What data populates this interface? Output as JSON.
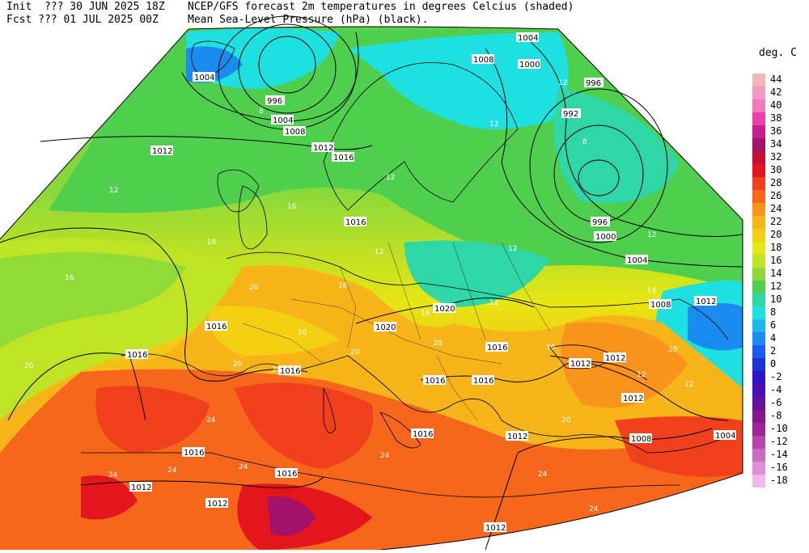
{
  "header": {
    "init_line": "Init  ??? 30 JUN 2025 18Z",
    "fcst_line": "Fcst ??? 01 JUL 2025 00Z",
    "title_line1": "NCEP/GFS forecast 2m temperatures in degrees Celcius (shaded)",
    "title_line2": "Mean Sea-Level Pressure (hPa) (black)."
  },
  "legend": {
    "title": "deg. C",
    "entries": [
      {
        "label": "44",
        "color": "#f4b7b7"
      },
      {
        "label": "42",
        "color": "#f39ac7"
      },
      {
        "label": "40",
        "color": "#f178b9"
      },
      {
        "label": "38",
        "color": "#ee3fae"
      },
      {
        "label": "36",
        "color": "#c81e8e"
      },
      {
        "label": "34",
        "color": "#a3126a"
      },
      {
        "label": "32",
        "color": "#c20f3b"
      },
      {
        "label": "30",
        "color": "#e3151d"
      },
      {
        "label": "28",
        "color": "#f1401c"
      },
      {
        "label": "26",
        "color": "#f6671c"
      },
      {
        "label": "24",
        "color": "#f8941c"
      },
      {
        "label": "22",
        "color": "#f8b519"
      },
      {
        "label": "20",
        "color": "#f4d013"
      },
      {
        "label": "18",
        "color": "#e7e612"
      },
      {
        "label": "16",
        "color": "#bfe325"
      },
      {
        "label": "14",
        "color": "#8bd93a"
      },
      {
        "label": "12",
        "color": "#4fcf4d"
      },
      {
        "label": "10",
        "color": "#2fd6a6"
      },
      {
        "label": "8",
        "color": "#1ee0e0"
      },
      {
        "label": "6",
        "color": "#1ab8ec"
      },
      {
        "label": "4",
        "color": "#1a8cf0"
      },
      {
        "label": "2",
        "color": "#1a5cf0"
      },
      {
        "label": "0",
        "color": "#1c33d9"
      },
      {
        "label": "-2",
        "color": "#3013c9"
      },
      {
        "label": "-4",
        "color": "#4b0fb4"
      },
      {
        "label": "-6",
        "color": "#66109f"
      },
      {
        "label": "-8",
        "color": "#86168f"
      },
      {
        "label": "-10",
        "color": "#a02499"
      },
      {
        "label": "-12",
        "color": "#b843ad"
      },
      {
        "label": "-14",
        "color": "#cc69c2"
      },
      {
        "label": "-16",
        "color": "#de8ed6"
      },
      {
        "label": "-18",
        "color": "#f2b5ec"
      }
    ]
  },
  "isobar_labels": [
    "1004",
    "1008",
    "1000",
    "996",
    "992",
    "1004",
    "996",
    "1004",
    "1008",
    "1012",
    "1012",
    "1016",
    "1016",
    "996",
    "1000",
    "1004",
    "1008",
    "1012",
    "1020",
    "1020",
    "1016",
    "1016",
    "1016",
    "1016",
    "1012",
    "1012",
    "1012",
    "1016",
    "1016",
    "1016",
    "1012",
    "1008",
    "1004",
    "1012",
    "1016",
    "1016",
    "1012",
    "1012"
  ],
  "temp_labels": [
    "12",
    "8",
    "12",
    "12",
    "12",
    "16",
    "16",
    "16",
    "20",
    "20",
    "20",
    "20",
    "20",
    "24",
    "24",
    "24",
    "24",
    "24",
    "16",
    "16",
    "12",
    "12",
    "8",
    "12",
    "12",
    "16",
    "20",
    "20",
    "24",
    "20",
    "16",
    "12",
    "12",
    "20",
    "24"
  ]
}
